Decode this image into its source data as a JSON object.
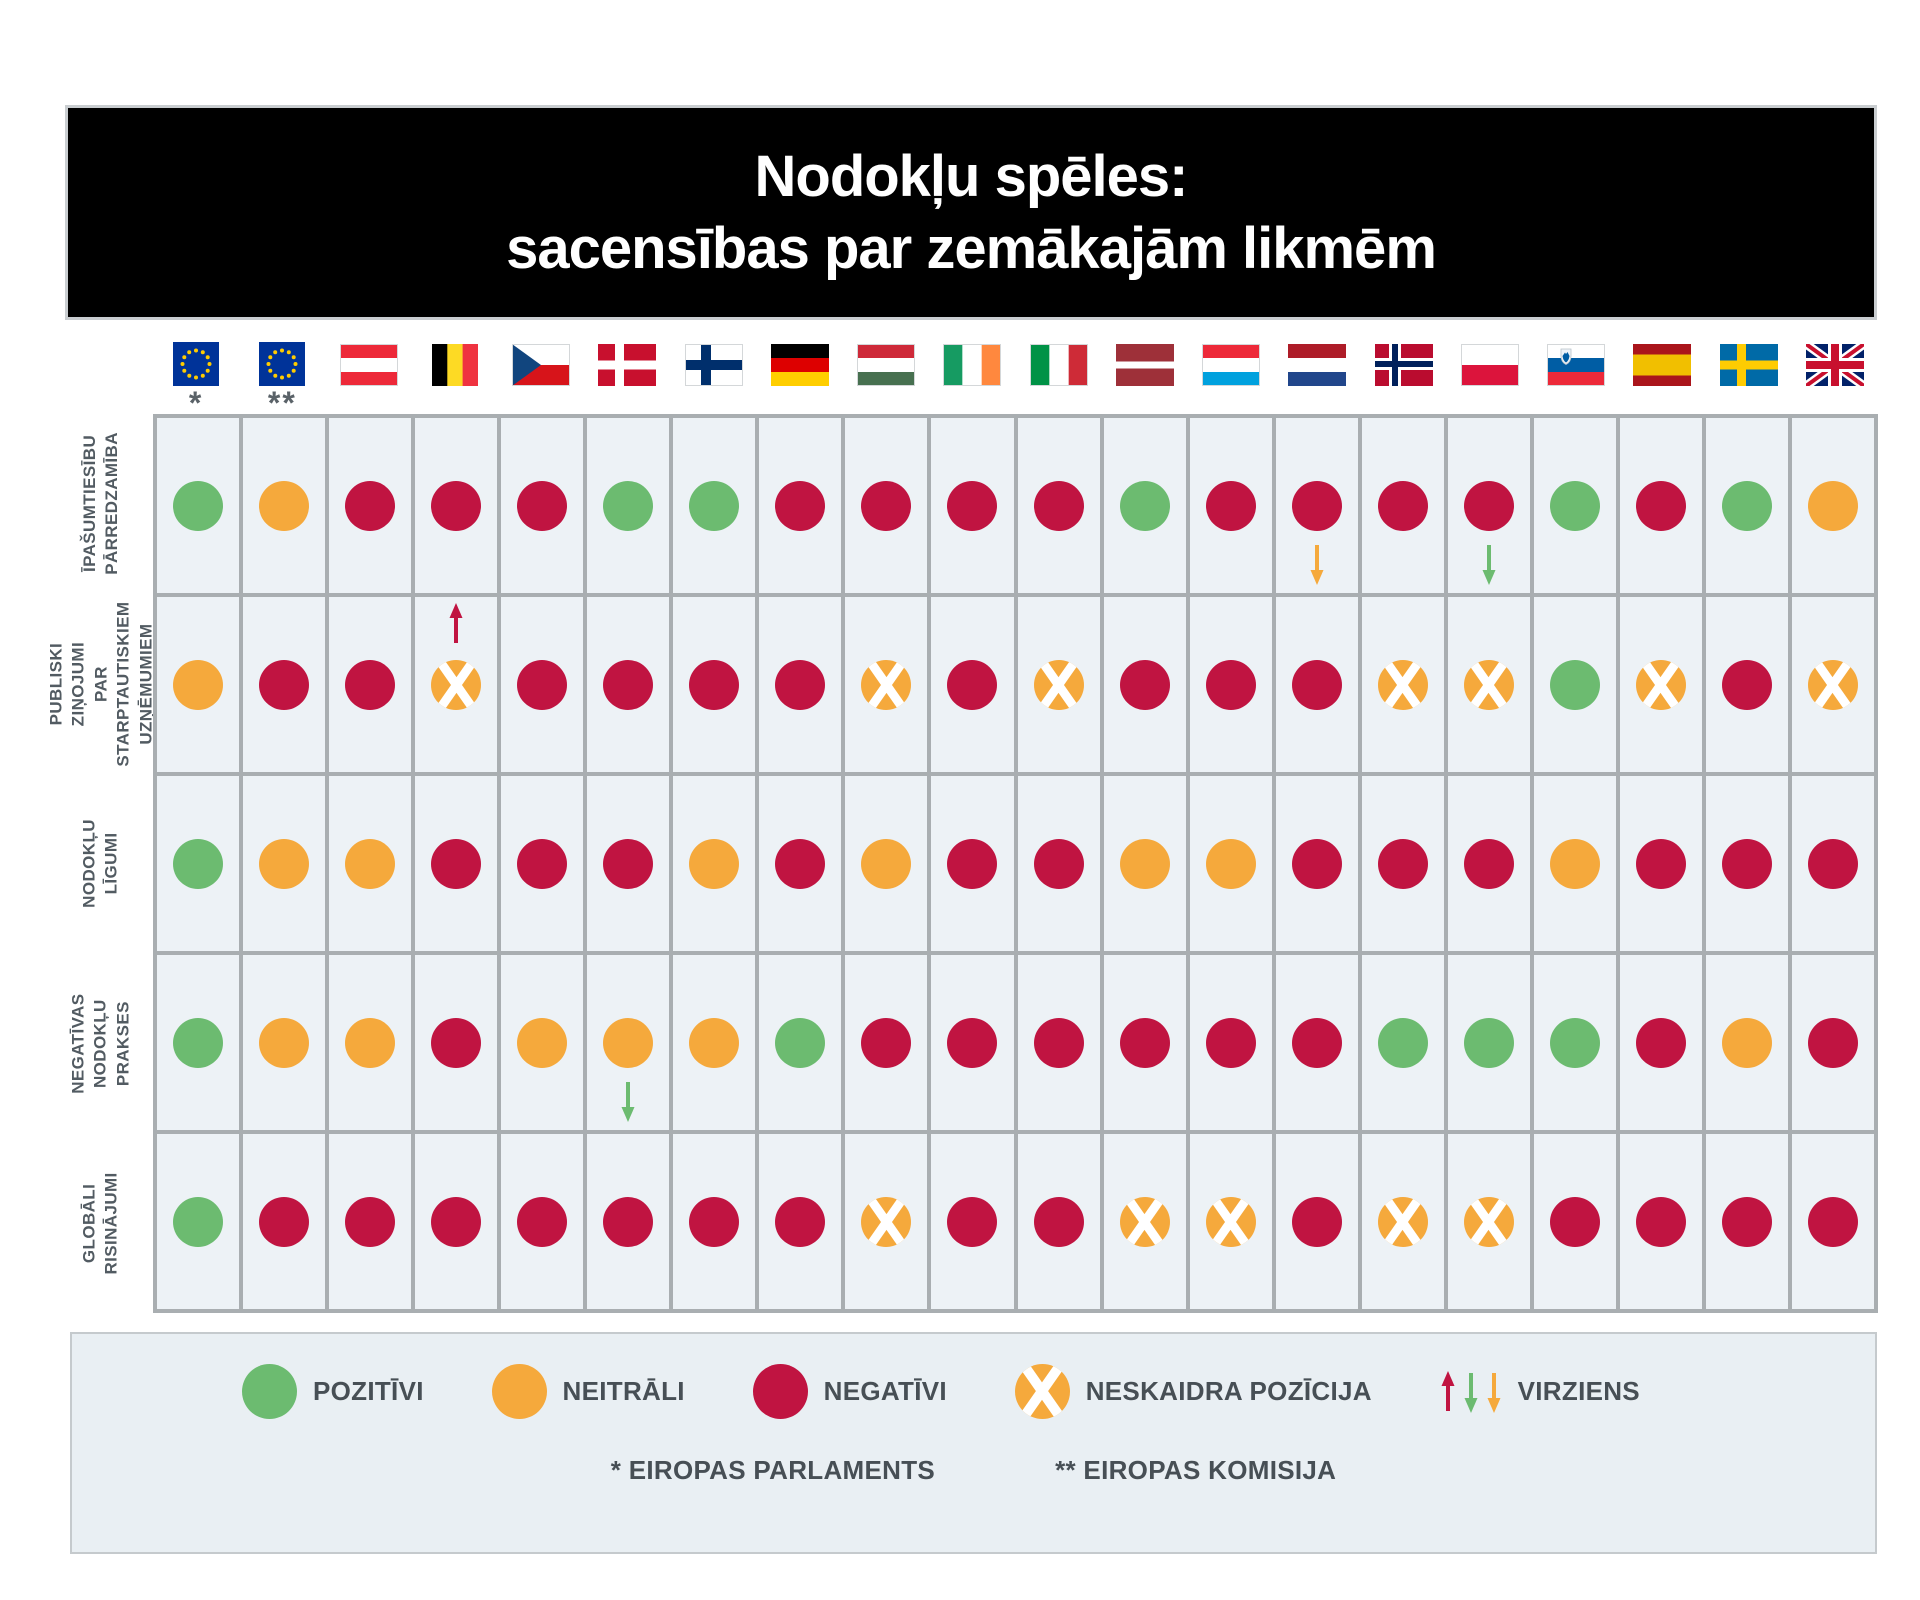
{
  "title": {
    "line1": "Nodokļu spēles:",
    "line2": "sacensības par zemākajām likmēm"
  },
  "colors": {
    "positive": "#6CBB70",
    "neutral": "#F5A93C",
    "negative": "#C01441",
    "cell_bg": "#EDF2F6",
    "grid_line": "#A9AEB1",
    "banner_bg": "#000000",
    "legend_bg": "#E9EFF3"
  },
  "chart_data": {
    "type": "heatmap",
    "title": "Nodokļu spēles: sacensības par zemākajām likmēm",
    "value_legend": {
      "P": "POZITĪVI",
      "N": "NEITRĀLI",
      "R": "NEGATĪVI",
      "X": "NESKAIDRA POZĪCIJA"
    },
    "columns": [
      {
        "id": "european-parliament",
        "flag": "eu",
        "note": "*"
      },
      {
        "id": "european-commission",
        "flag": "eu",
        "note": "**"
      },
      {
        "id": "austria",
        "flag": "at",
        "note": ""
      },
      {
        "id": "belgium",
        "flag": "be",
        "note": ""
      },
      {
        "id": "czech-republic",
        "flag": "cz",
        "note": ""
      },
      {
        "id": "denmark",
        "flag": "dk",
        "note": ""
      },
      {
        "id": "finland",
        "flag": "fi",
        "note": ""
      },
      {
        "id": "germany",
        "flag": "de",
        "note": ""
      },
      {
        "id": "hungary",
        "flag": "hu",
        "note": ""
      },
      {
        "id": "ireland",
        "flag": "ie",
        "note": ""
      },
      {
        "id": "italy",
        "flag": "it",
        "note": ""
      },
      {
        "id": "latvia",
        "flag": "lv",
        "note": ""
      },
      {
        "id": "luxembourg",
        "flag": "lu",
        "note": ""
      },
      {
        "id": "netherlands",
        "flag": "nl",
        "note": ""
      },
      {
        "id": "norway",
        "flag": "no",
        "note": ""
      },
      {
        "id": "poland",
        "flag": "pl",
        "note": ""
      },
      {
        "id": "slovenia",
        "flag": "si",
        "note": ""
      },
      {
        "id": "spain",
        "flag": "es",
        "note": ""
      },
      {
        "id": "sweden",
        "flag": "se",
        "note": ""
      },
      {
        "id": "united-kingdom",
        "flag": "gb",
        "note": ""
      }
    ],
    "rows": [
      {
        "label": "ĪPAŠUMTIESĪBU\nPĀRREDZAMĪBA",
        "cells": [
          "P",
          "N",
          "R",
          "R",
          "R",
          "P",
          "P",
          "R",
          "R",
          "R",
          "R",
          "P",
          "R",
          {
            "v": "R",
            "arrow": {
              "dir": "down",
              "color": "neutral",
              "pos": "below"
            }
          },
          "R",
          {
            "v": "R",
            "arrow": {
              "dir": "down",
              "color": "positive",
              "pos": "below"
            }
          },
          "P",
          "R",
          "P",
          "N"
        ]
      },
      {
        "label": "PUBLISKI ZIŅOJUMI\nPAR STARPTAUTISKIEM\nUZŅĒMUMIEM",
        "cells": [
          "N",
          "R",
          "R",
          {
            "v": "X",
            "arrow": {
              "dir": "up",
              "color": "negative",
              "pos": "above"
            }
          },
          "R",
          "R",
          "R",
          "R",
          "X",
          "R",
          "X",
          "R",
          "R",
          "R",
          "X",
          "X",
          "P",
          "X",
          "R",
          "X"
        ]
      },
      {
        "label": "NODOKĻU\nLĪGUMI",
        "cells": [
          "P",
          "N",
          "N",
          "R",
          "R",
          "R",
          "N",
          "R",
          "N",
          "R",
          "R",
          "N",
          "N",
          "R",
          "R",
          "R",
          "N",
          "R",
          "R",
          "R"
        ]
      },
      {
        "label": "NEGATĪVAS NODOKĻU\nPRAKSES",
        "cells": [
          "P",
          "N",
          "N",
          "R",
          "N",
          {
            "v": "N",
            "arrow": {
              "dir": "down",
              "color": "positive",
              "pos": "below"
            }
          },
          "N",
          "P",
          "R",
          "R",
          "R",
          "R",
          "R",
          "R",
          "P",
          "P",
          "P",
          "R",
          "N",
          "R"
        ]
      },
      {
        "label": "GLOBĀLI\nRISINĀJUMI",
        "cells": [
          "P",
          "R",
          "R",
          "R",
          "R",
          "R",
          "R",
          "R",
          "X",
          "R",
          "R",
          "X",
          "X",
          "R",
          "X",
          "X",
          "R",
          "R",
          "R",
          "R"
        ]
      }
    ]
  },
  "legend": {
    "items": [
      {
        "type": "P",
        "label": "POZITĪVI"
      },
      {
        "type": "N",
        "label": "NEITRĀLI"
      },
      {
        "type": "R",
        "label": "NEGATĪVI"
      },
      {
        "type": "X",
        "label": "NESKAIDRA POZĪCIJA"
      },
      {
        "type": "ARROWS",
        "label": "VIRZIENS"
      }
    ],
    "arrow_order": [
      {
        "dir": "up",
        "color": "negative"
      },
      {
        "dir": "down",
        "color": "positive"
      },
      {
        "dir": "down",
        "color": "neutral"
      }
    ],
    "footnotes": [
      {
        "mark": "*",
        "text": "EIROPAS PARLAMENTS"
      },
      {
        "mark": "**",
        "text": "EIROPAS KOMISIJA"
      }
    ]
  }
}
